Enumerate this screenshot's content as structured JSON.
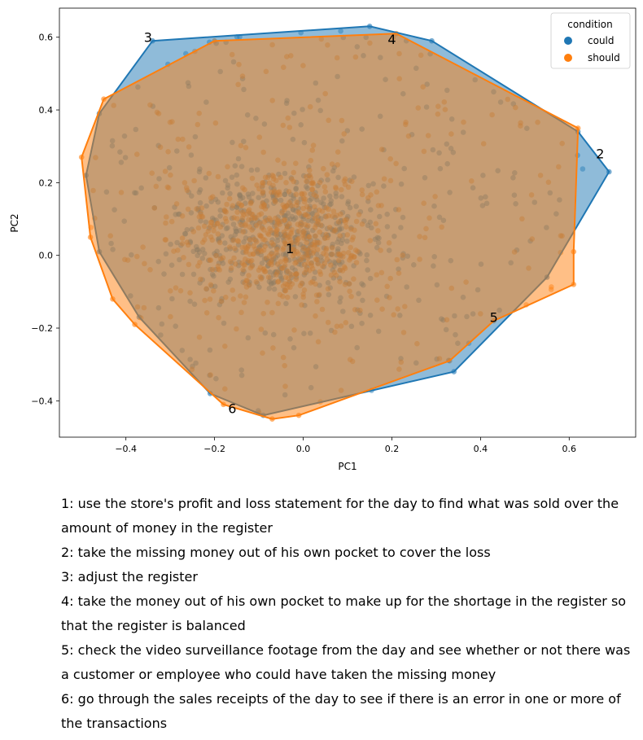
{
  "chart_data": {
    "type": "scatter",
    "xlabel": "PC1",
    "ylabel": "PC2",
    "xlim": [
      -0.55,
      0.75
    ],
    "ylim": [
      -0.5,
      0.68
    ],
    "xticks": [
      -0.4,
      -0.2,
      0.0,
      0.2,
      0.4,
      0.6
    ],
    "yticks": [
      -0.4,
      -0.2,
      0.0,
      0.2,
      0.4,
      0.6
    ],
    "xtick_labels": [
      "−0.4",
      "−0.2",
      "0.0",
      "0.2",
      "0.4",
      "0.6"
    ],
    "ytick_labels": [
      "−0.4",
      "−0.2",
      "0.0",
      "0.2",
      "0.4",
      "0.6"
    ],
    "grid": false,
    "legend": {
      "title": "condition",
      "placement": "top-right",
      "entries": [
        {
          "name": "could",
          "color": "#1f77b4"
        },
        {
          "name": "should",
          "color": "#ff7f0e"
        }
      ]
    },
    "series": [
      {
        "name": "could",
        "color": "#1f77b4",
        "hull": [
          [
            -0.49,
            0.22
          ],
          [
            -0.46,
            0.39
          ],
          [
            -0.34,
            0.59
          ],
          [
            0.15,
            0.63
          ],
          [
            0.29,
            0.59
          ],
          [
            0.62,
            0.34
          ],
          [
            0.69,
            0.23
          ],
          [
            0.55,
            -0.06
          ],
          [
            0.34,
            -0.32
          ],
          [
            -0.09,
            -0.44
          ],
          [
            -0.21,
            -0.38
          ],
          [
            -0.37,
            -0.17
          ],
          [
            -0.46,
            0.01
          ]
        ]
      },
      {
        "name": "should",
        "color": "#ff7f0e",
        "hull": [
          [
            -0.5,
            0.27
          ],
          [
            -0.45,
            0.43
          ],
          [
            -0.2,
            0.59
          ],
          [
            0.21,
            0.61
          ],
          [
            0.62,
            0.35
          ],
          [
            0.61,
            0.01
          ],
          [
            0.61,
            -0.08
          ],
          [
            0.43,
            -0.18
          ],
          [
            0.33,
            -0.29
          ],
          [
            -0.01,
            -0.44
          ],
          [
            -0.07,
            -0.45
          ],
          [
            -0.18,
            -0.41
          ],
          [
            -0.38,
            -0.19
          ],
          [
            -0.43,
            -0.12
          ],
          [
            -0.48,
            0.05
          ]
        ]
      }
    ],
    "cluster_labels": [
      {
        "label": "1",
        "x": -0.03,
        "y": 0.02
      },
      {
        "label": "2",
        "x": 0.67,
        "y": 0.28
      },
      {
        "label": "3",
        "x": -0.35,
        "y": 0.6
      },
      {
        "label": "4",
        "x": 0.2,
        "y": 0.595
      },
      {
        "label": "5",
        "x": 0.43,
        "y": -0.17
      },
      {
        "label": "6",
        "x": -0.16,
        "y": -0.42
      }
    ]
  },
  "caption": [
    "1: use the store's profit and loss statement for the day to find what was sold over the amount of money in the register",
    "2: take the missing money out of his own pocket to cover the loss",
    "3: adjust the register",
    "4: take the money out of his own pocket to make up for the shortage in the register so that the register is balanced",
    "5: check the video surveillance footage from the day and see whether or not there was a customer or employee who could have taken the missing money",
    "6: go through the sales receipts of the day to see if there is an error in one or more of the transactions"
  ]
}
